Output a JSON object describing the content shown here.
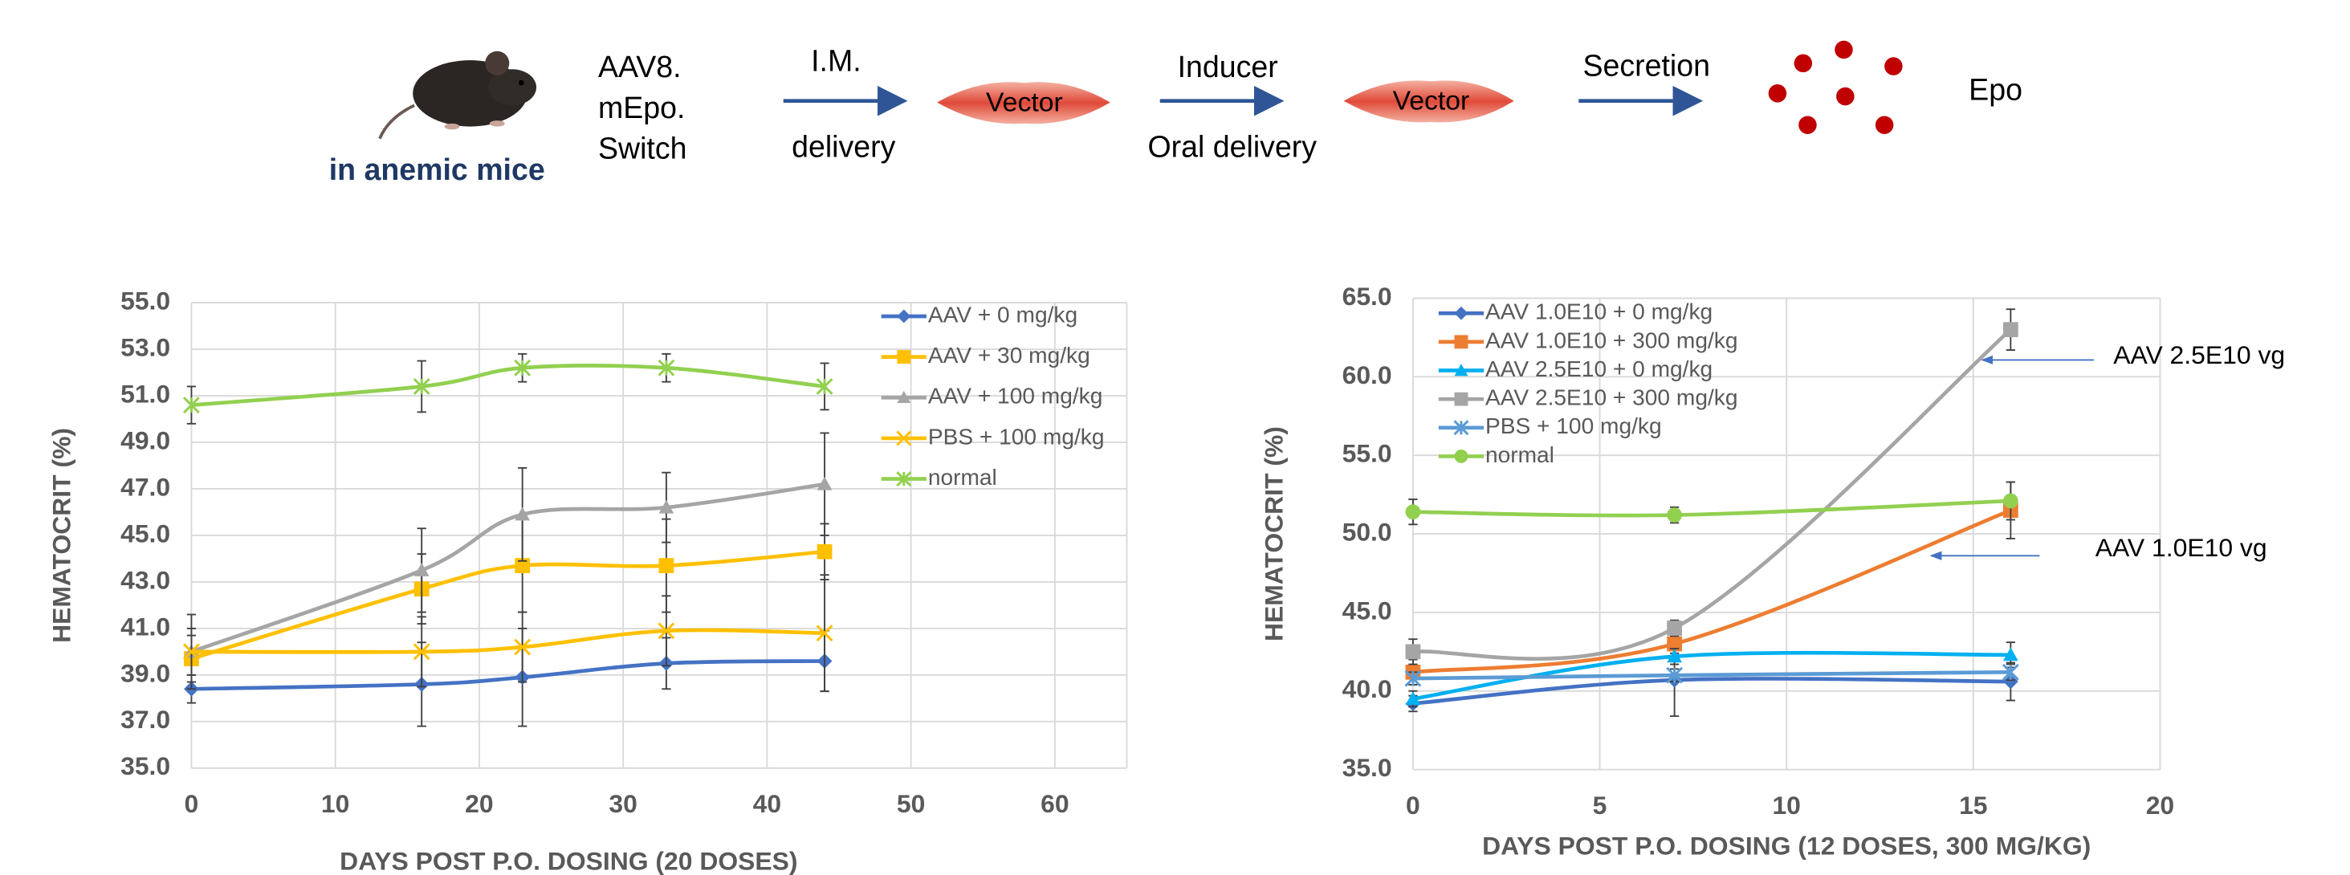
{
  "diagram": {
    "subject": "in anemic mice",
    "construct": [
      "AAV8.",
      "mEpo.",
      "Switch"
    ],
    "steps": [
      {
        "top": "I.M.",
        "bottom": "delivery"
      },
      {
        "top": "Inducer",
        "bottom": "Oral delivery"
      },
      {
        "top": "Secretion"
      }
    ],
    "tissue": [
      "Vector",
      "Vector"
    ],
    "product": "Epo"
  },
  "chart_data": [
    {
      "type": "line",
      "x_label": "DAYS POST P.O. DOSING (20 DOSES)",
      "y_label": "HEMATOCRIT (%)",
      "x": [
        0,
        16,
        23,
        33,
        44
      ],
      "xlim": [
        0,
        65
      ],
      "xticks": [
        0,
        10,
        20,
        30,
        40,
        50,
        60
      ],
      "ylim": [
        35,
        55
      ],
      "yticks": [
        {
          "value": 35,
          "label": "35.0"
        },
        {
          "value": 37,
          "label": "37.0"
        },
        {
          "value": 39,
          "label": "39.0"
        },
        {
          "value": 41,
          "label": "41.0"
        },
        {
          "value": 43,
          "label": "43.0"
        },
        {
          "value": 45,
          "label": "45.0"
        },
        {
          "value": 47,
          "label": "47.0"
        },
        {
          "value": 49,
          "label": "49.0"
        },
        {
          "value": 51,
          "label": "51.0"
        },
        {
          "value": 53,
          "label": "53.0"
        },
        {
          "value": 55,
          "label": "55.0"
        }
      ],
      "grid": true,
      "legend": "upper right",
      "smooth": true,
      "series": [
        {
          "name": "AAV + 0 mg/kg",
          "color": "#4472c4",
          "marker": "diamond",
          "values": [
            38.4,
            38.6,
            38.9,
            39.5,
            39.6
          ],
          "errors": [
            0.6,
            1.8,
            2.1,
            1.1,
            1.3
          ]
        },
        {
          "name": "AAV + 30 mg/kg",
          "color": "#ffc000",
          "marker": "square",
          "values": [
            39.7,
            42.7,
            43.7,
            43.7,
            44.3
          ],
          "errors": [
            1.0,
            1.5,
            2.0,
            2.0,
            1.2
          ]
        },
        {
          "name": "AAV + 100 mg/kg",
          "color": "#a5a5a5",
          "marker": "triangle",
          "values": [
            40.0,
            43.5,
            45.9,
            46.2,
            47.2
          ],
          "errors": [
            1.6,
            1.8,
            2.0,
            1.5,
            2.2
          ]
        },
        {
          "name": "PBS + 100 mg/kg",
          "color": "#ffc000",
          "marker": "x",
          "values": [
            40.0,
            40.0,
            40.2,
            40.9,
            40.8
          ],
          "errors": [
            1.0,
            1.5,
            1.5,
            1.5,
            2.5
          ]
        },
        {
          "name": "normal",
          "color": "#92d050",
          "marker": "star",
          "values": [
            50.6,
            51.4,
            52.2,
            52.2,
            51.4
          ],
          "errors": [
            0.8,
            1.1,
            0.6,
            0.6,
            1.0
          ]
        }
      ]
    },
    {
      "type": "line",
      "x_label": "DAYS POST P.O. DOSING (12 DOSES, 300 MG/KG)",
      "y_label": "HEMATOCRIT (%)",
      "x": [
        0,
        7,
        16
      ],
      "xlim": [
        0,
        20
      ],
      "xticks": [
        0,
        5,
        10,
        15,
        20
      ],
      "ylim": [
        35,
        65
      ],
      "yticks": [
        {
          "value": 35,
          "label": "35.0"
        },
        {
          "value": 40,
          "label": "40.0"
        },
        {
          "value": 45,
          "label": "45.0"
        },
        {
          "value": 50,
          "label": "50.0"
        },
        {
          "value": 55,
          "label": "55.0"
        },
        {
          "value": 60,
          "label": "60.0"
        },
        {
          "value": 65,
          "label": "65.0"
        }
      ],
      "grid": true,
      "legend": "upper left",
      "smooth": true,
      "series": [
        {
          "name": "AAV 1.0E10 + 0 mg/kg",
          "color": "#4472c4",
          "marker": "diamond",
          "values": [
            39.2,
            40.7,
            40.6
          ],
          "errors": [
            0.5,
            2.3,
            1.2
          ]
        },
        {
          "name": "AAV 1.0E10 + 300 mg/kg",
          "color": "#ed7d31",
          "marker": "square",
          "values": [
            41.2,
            43.0,
            51.5
          ],
          "errors": [
            0.8,
            0.6,
            1.8
          ]
        },
        {
          "name": "AAV 2.5E10 + 0 mg/kg",
          "color": "#00b0f0",
          "marker": "triangle",
          "values": [
            39.5,
            42.2,
            42.3
          ],
          "errors": [
            0.5,
            0.5,
            0.8
          ]
        },
        {
          "name": "AAV 2.5E10 + 300 mg/kg",
          "color": "#a5a5a5",
          "marker": "square",
          "values": [
            42.5,
            44.0,
            63.0
          ],
          "errors": [
            0.8,
            0.5,
            1.3
          ]
        },
        {
          "name": "PBS + 100 mg/kg",
          "color": "#5b9bd5",
          "marker": "star",
          "values": [
            40.8,
            41.0,
            41.2
          ],
          "errors": [
            0.4,
            0.4,
            0.5
          ]
        },
        {
          "name": "normal",
          "color": "#92d050",
          "marker": "circle",
          "values": [
            51.4,
            51.2,
            52.1
          ],
          "errors": [
            0.8,
            0.5,
            1.2
          ]
        }
      ],
      "annotations": [
        "AAV 2.5E10 vg",
        "AAV 1.0E10 vg"
      ]
    }
  ]
}
